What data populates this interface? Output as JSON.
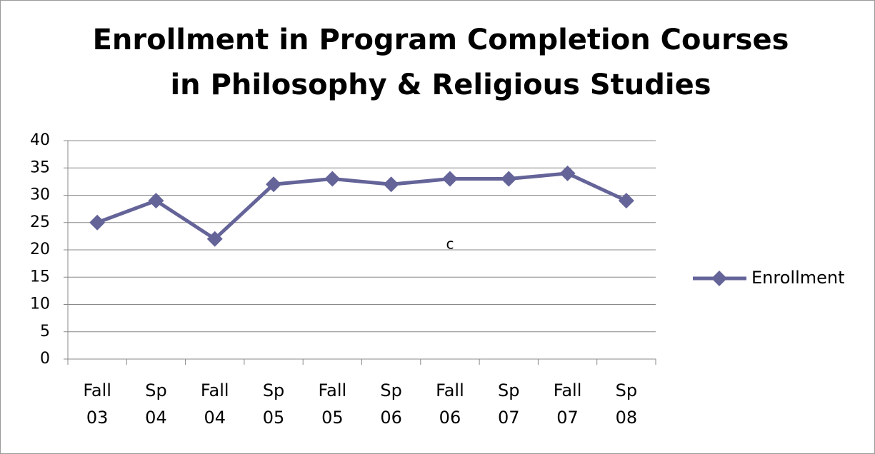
{
  "chart_data": {
    "type": "line",
    "title": [
      "Enrollment in Program Completion Courses",
      "in Philosophy & Religious Studies"
    ],
    "categories": [
      "Fall 03",
      "Sp 04",
      "Fall 04",
      "Sp 05",
      "Fall 05",
      "Sp 06",
      "Fall 06",
      "Sp 07",
      "Fall 07",
      "Sp 08"
    ],
    "series": [
      {
        "name": "Enrollment",
        "color": "#646499",
        "values": [
          25,
          29,
          22,
          32,
          33,
          32,
          33,
          33,
          34,
          29
        ]
      }
    ],
    "ylim": [
      0,
      40
    ],
    "yticks": [
      0,
      5,
      10,
      15,
      20,
      25,
      30,
      35,
      40
    ],
    "grid": true,
    "legend": "right",
    "annotations": [
      "c"
    ]
  }
}
